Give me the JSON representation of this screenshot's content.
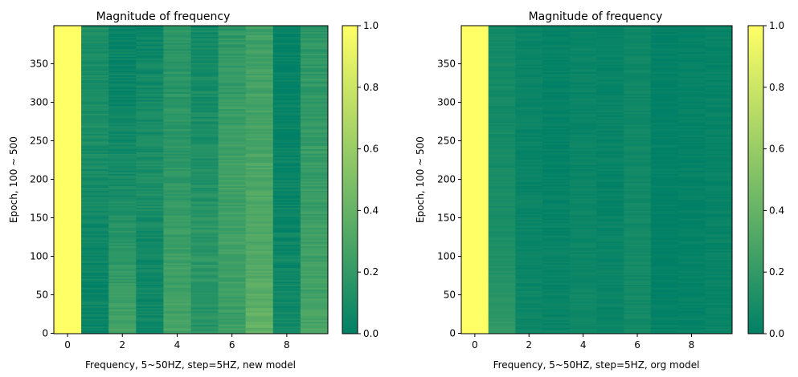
{
  "colormap": {
    "name": "summer",
    "start_color": "#008066",
    "end_color": "#ffff66"
  },
  "chart_data": [
    {
      "type": "heatmap",
      "title": "Magnitude of frequency",
      "xlabel": "Frequency, 5~50HZ, step=5HZ, new model",
      "ylabel": "Epoch, 100 ~ 500",
      "xlim": [
        -0.5,
        9.5
      ],
      "ylim": [
        -0.5,
        399.5
      ],
      "x_ticks": [
        0,
        2,
        4,
        6,
        8
      ],
      "x_tick_labels": [
        "0",
        "2",
        "4",
        "6",
        "8"
      ],
      "y_ticks": [
        0,
        50,
        100,
        150,
        200,
        250,
        300,
        350
      ],
      "y_tick_labels": [
        "0",
        "50",
        "100",
        "150",
        "200",
        "250",
        "300",
        "350"
      ],
      "columns": [
        0,
        1,
        2,
        3,
        4,
        5,
        6,
        7,
        8,
        9
      ],
      "rows": 400,
      "column_levels_bottom_to_top": [
        [
          1.0,
          1.0,
          1.0,
          1.0,
          1.0
        ],
        [
          0.03,
          0.04,
          0.09,
          0.11,
          0.12
        ],
        [
          0.27,
          0.18,
          0.09,
          0.04,
          0.02
        ],
        [
          0.06,
          0.06,
          0.12,
          0.08,
          0.04
        ],
        [
          0.27,
          0.24,
          0.18,
          0.17,
          0.16
        ],
        [
          0.15,
          0.18,
          0.13,
          0.1,
          0.08
        ],
        [
          0.24,
          0.25,
          0.26,
          0.22,
          0.18
        ],
        [
          0.39,
          0.32,
          0.3,
          0.27,
          0.25
        ],
        [
          0.07,
          0.05,
          0.03,
          0.02,
          0.02
        ],
        [
          0.28,
          0.25,
          0.22,
          0.2,
          0.18
        ]
      ],
      "noise_amplitude": 0.05,
      "colorbar": {
        "vmin": 0.0,
        "vmax": 1.0,
        "ticks": [
          0.0,
          0.2,
          0.4,
          0.6,
          0.8,
          1.0
        ],
        "tick_labels": [
          "0.0",
          "0.2",
          "0.4",
          "0.6",
          "0.8",
          "1.0"
        ]
      }
    },
    {
      "type": "heatmap",
      "title": "Magnitude of frequency",
      "xlabel": "Frequency, 5~50HZ, step=5HZ, org model",
      "ylabel": "Epoch, 100 ~ 500",
      "xlim": [
        -0.5,
        9.5
      ],
      "ylim": [
        -0.5,
        399.5
      ],
      "x_ticks": [
        0,
        2,
        4,
        6,
        8
      ],
      "x_tick_labels": [
        "0",
        "2",
        "4",
        "6",
        "8"
      ],
      "y_ticks": [
        0,
        50,
        100,
        150,
        200,
        250,
        300,
        350
      ],
      "y_tick_labels": [
        "0",
        "50",
        "100",
        "150",
        "200",
        "250",
        "300",
        "350"
      ],
      "columns": [
        0,
        1,
        2,
        3,
        4,
        5,
        6,
        7,
        8,
        9
      ],
      "rows": 400,
      "column_levels_bottom_to_top": [
        [
          1.0,
          1.0,
          1.0,
          1.0,
          1.0
        ],
        [
          0.2,
          0.12,
          0.09,
          0.08,
          0.08
        ],
        [
          0.05,
          0.04,
          0.04,
          0.04,
          0.04
        ],
        [
          0.04,
          0.03,
          0.02,
          0.02,
          0.02
        ],
        [
          0.06,
          0.05,
          0.05,
          0.04,
          0.04
        ],
        [
          0.04,
          0.04,
          0.03,
          0.03,
          0.03
        ],
        [
          0.08,
          0.08,
          0.07,
          0.06,
          0.06
        ],
        [
          0.02,
          0.01,
          0.01,
          0.01,
          0.01
        ],
        [
          0.02,
          0.02,
          0.02,
          0.02,
          0.02
        ],
        [
          0.04,
          0.03,
          0.03,
          0.03,
          0.03
        ]
      ],
      "noise_amplitude": 0.025,
      "colorbar": {
        "vmin": 0.0,
        "vmax": 1.0,
        "ticks": [
          0.0,
          0.2,
          0.4,
          0.6,
          0.8,
          1.0
        ],
        "tick_labels": [
          "0.0",
          "0.2",
          "0.4",
          "0.6",
          "0.8",
          "1.0"
        ]
      }
    }
  ]
}
